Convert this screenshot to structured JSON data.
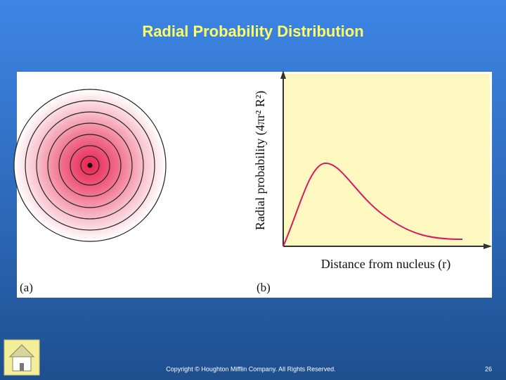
{
  "slide": {
    "title": "Radial Probability Distribution",
    "figure": {
      "panel_a_label": "(a)",
      "panel_b_label": "(b)",
      "y_axis_label": "Radial probability (4πr² R²)",
      "x_axis_label": "Distance from nucleus (r)"
    },
    "footer": {
      "copyright": "Copyright © Houghton Mifflin Company. All Rights Reserved.",
      "page_number": "26"
    }
  }
}
